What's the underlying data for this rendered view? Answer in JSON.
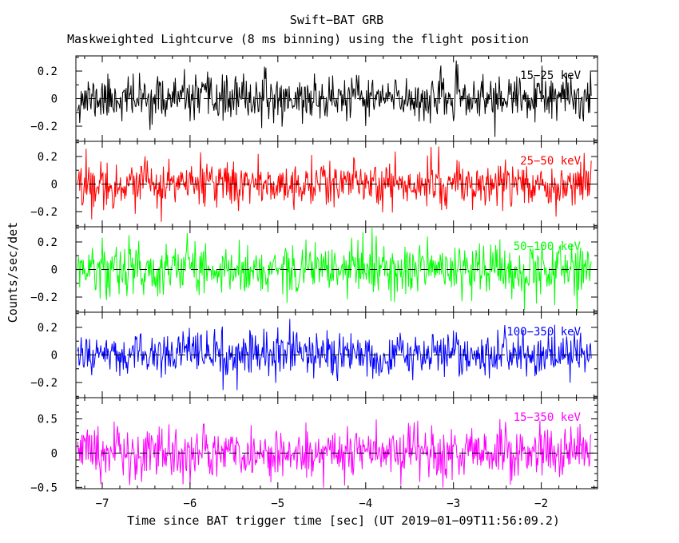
{
  "chart_data": {
    "type": "line",
    "title": "Swift−BAT GRB",
    "subtitle": "Maskweighted Lightcurve (8 ms binning) using the flight position",
    "xlabel": "Time since BAT trigger time [sec] (UT 2019−01−09T11:56:09.2)",
    "ylabel": "Counts/sec/det",
    "grid": false,
    "legend": "none",
    "xlim": [
      -7.3,
      -1.36
    ],
    "x_major_ticks": [
      -7,
      -6,
      -5,
      -4,
      -3,
      -2
    ],
    "x_tick_labels": [
      "−7",
      "−6",
      "−5",
      "−4",
      "−3",
      "−2"
    ],
    "x_minor_step": 0.2,
    "bin_seconds": 0.008,
    "data_span": [
      -7.28,
      -1.43
    ],
    "zero_line_style": "dashed",
    "zero_line_color": "#000000",
    "panels": [
      {
        "label": "15−25 keV",
        "color": "#000000",
        "ylim": [
          -0.31,
          0.31
        ],
        "y_major_ticks": [
          0.2,
          0,
          -0.2
        ],
        "y_tick_labels": [
          "0.2",
          "0",
          "−0.2"
        ],
        "y_minor_step": 0.1,
        "noise_mean": 0,
        "noise_sigma": 0.08,
        "seed": 11
      },
      {
        "label": "25−50 keV",
        "color": "#ff0000",
        "ylim": [
          -0.31,
          0.31
        ],
        "y_major_ticks": [
          0.2,
          0,
          -0.2
        ],
        "y_tick_labels": [
          "0.2",
          "0",
          "−0.2"
        ],
        "y_minor_step": 0.1,
        "noise_mean": 0,
        "noise_sigma": 0.082,
        "seed": 22
      },
      {
        "label": "50−100 keV",
        "color": "#00ff00",
        "ylim": [
          -0.31,
          0.31
        ],
        "y_major_ticks": [
          0.2,
          0,
          -0.2
        ],
        "y_tick_labels": [
          "0.2",
          "0",
          "−0.2"
        ],
        "y_minor_step": 0.1,
        "noise_mean": 0,
        "noise_sigma": 0.095,
        "seed": 33
      },
      {
        "label": "100−350 keV",
        "color": "#0000ff",
        "ylim": [
          -0.31,
          0.31
        ],
        "y_major_ticks": [
          0.2,
          0,
          -0.2
        ],
        "y_tick_labels": [
          "0.2",
          "0",
          "−0.2"
        ],
        "y_minor_step": 0.1,
        "noise_mean": 0,
        "noise_sigma": 0.08,
        "seed": 44
      },
      {
        "label": "15−350 keV",
        "color": "#ff00ff",
        "ylim": [
          -0.52,
          0.81
        ],
        "y_major_ticks": [
          0.5,
          0,
          -0.5
        ],
        "y_tick_labels": [
          "0.5",
          "0",
          "−0.5"
        ],
        "y_minor_step": 0.1,
        "noise_mean": 0,
        "noise_sigma": 0.19,
        "seed": 55
      }
    ]
  }
}
